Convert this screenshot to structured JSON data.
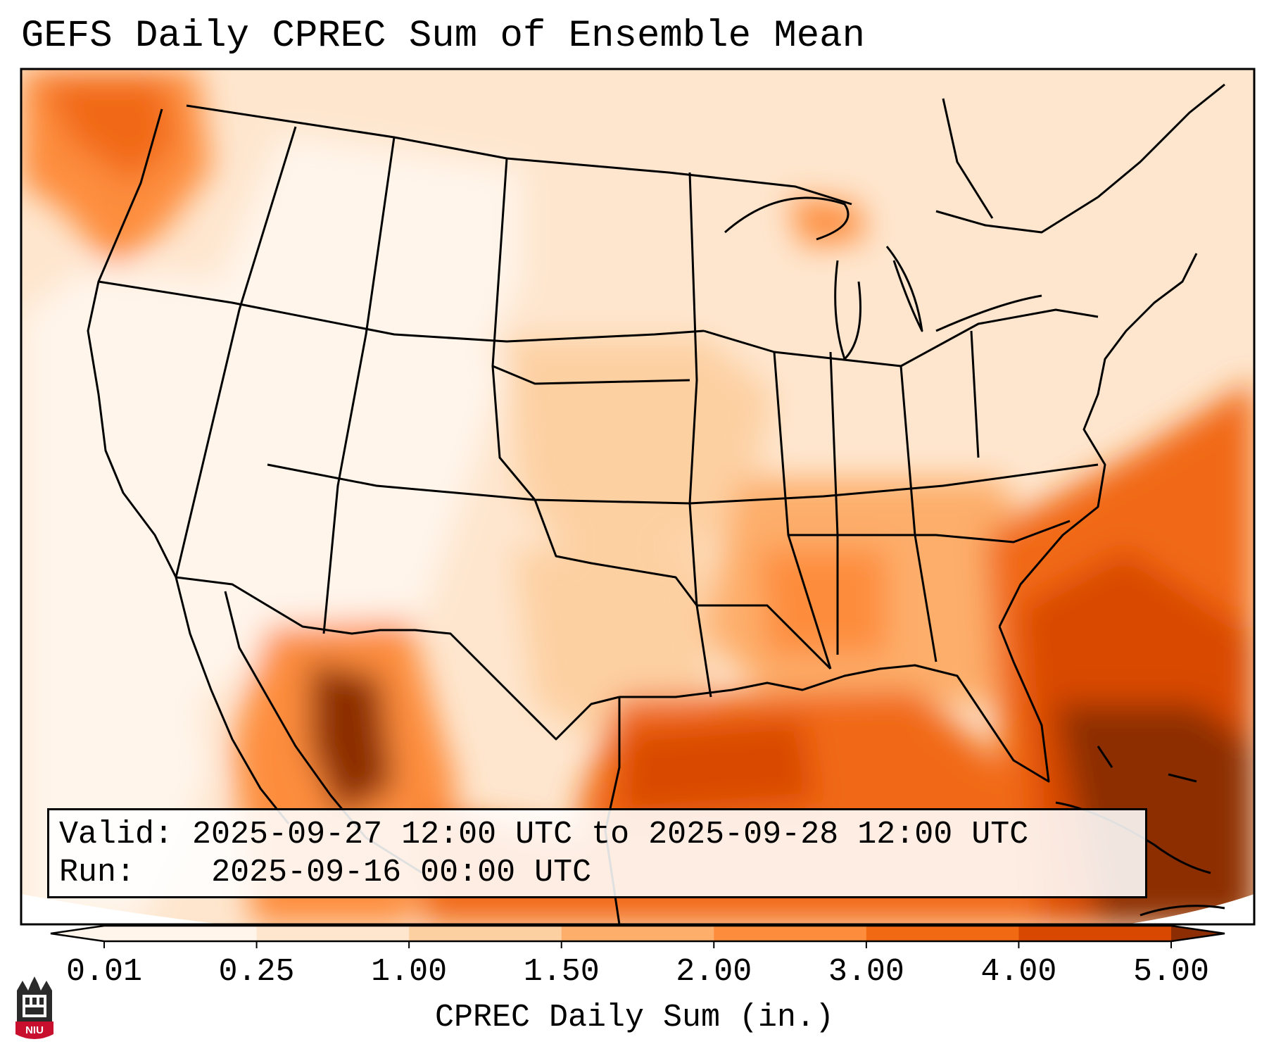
{
  "title": "GEFS Daily CPREC Sum of Ensemble Mean",
  "info": {
    "valid_label": "Valid:",
    "valid_value": "2025-09-27 12:00 UTC to 2025-09-28 12:00 UTC",
    "run_label": "Run:",
    "run_value": "2025-09-16 00:00 UTC"
  },
  "colorbar": {
    "label": "CPREC Daily Sum (in.)",
    "ticks": [
      "0.01",
      "0.25",
      "1.00",
      "1.50",
      "2.00",
      "3.00",
      "4.00",
      "5.00"
    ],
    "colors": [
      "#fff5eb",
      "#fee6ce",
      "#fdd0a2",
      "#fdae6b",
      "#fd8d3c",
      "#f16913",
      "#d94801",
      "#8c2d04"
    ],
    "extend": "both"
  },
  "logo_text": "NIU",
  "map": {
    "region": "Continental United States",
    "precip_field": "low over the west, moderate over the plains and southeast, heaviest over the Gulf of Mexico, Florida, Atlantic off the southeast coast, and western Mexico"
  }
}
